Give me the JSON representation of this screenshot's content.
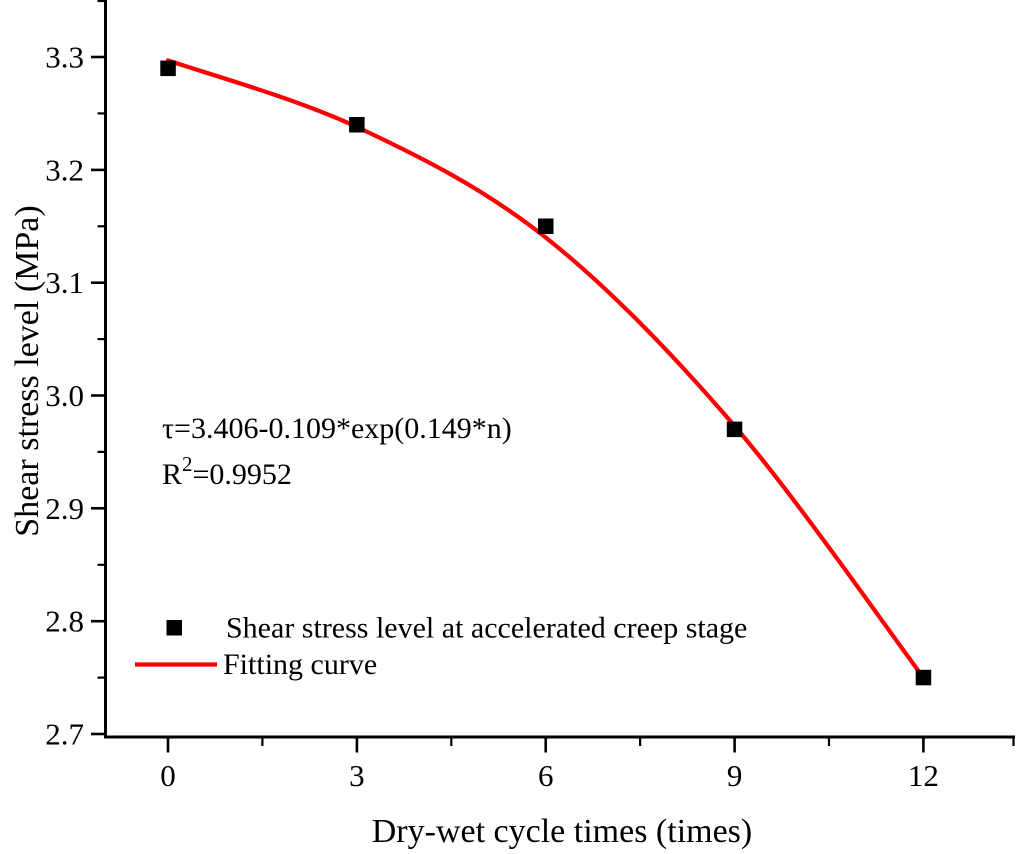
{
  "figure": {
    "background": "#ffffff",
    "axis_color": "#000000",
    "curve_color": "#ff0000",
    "marker_color": "#000000"
  },
  "chart_data": {
    "type": "scatter",
    "title": "",
    "xlabel": "Dry-wet cycle times (times)",
    "ylabel": "Shear stress level (MPa)",
    "x": [
      0,
      3,
      6,
      9,
      12
    ],
    "series": [
      {
        "name": "Shear stress level at accelerated creep stage",
        "type": "scatter",
        "marker": "square",
        "color": "#000000",
        "values": [
          3.29,
          3.24,
          3.15,
          2.97,
          2.75
        ]
      },
      {
        "name": "Fitting curve",
        "type": "line",
        "color": "#ff0000",
        "curve_points": {
          "x": [
            0,
            3,
            6,
            9,
            12
          ],
          "y": [
            3.297,
            3.238,
            3.14,
            2.973,
            2.75
          ]
        }
      }
    ],
    "xlim": [
      -1,
      13.5
    ],
    "ylim": [
      2.7,
      3.35
    ],
    "x_ticks": [
      0,
      3,
      6,
      9,
      12
    ],
    "x_tick_labels": [
      "0",
      "3",
      "6",
      "9",
      "12"
    ],
    "x_minor_ticks": [
      1.5,
      4.5,
      7.5,
      10.5,
      13.5
    ],
    "y_ticks": [
      2.7,
      2.8,
      2.9,
      3.0,
      3.1,
      3.2,
      3.3
    ],
    "y_tick_labels": [
      "2.7",
      "2.8",
      "2.9",
      "3.0",
      "3.1",
      "3.2",
      "3.3"
    ],
    "y_minor_ticks": [
      2.75,
      2.85,
      2.95,
      3.05,
      3.15,
      3.25,
      3.35
    ],
    "grid": false,
    "legend_position": "lower-left-inside",
    "annotation": {
      "equation": "τ=3.406-0.109*exp(0.149*n)",
      "r2_base": "R",
      "r2_sup": "2",
      "r2_value": "=0.9952"
    }
  }
}
